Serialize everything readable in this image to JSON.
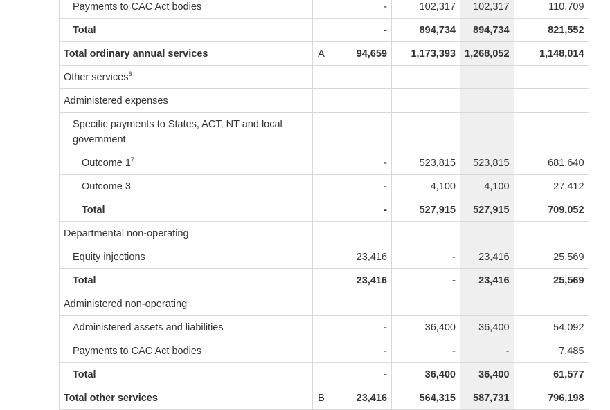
{
  "rows": [
    {
      "label": "Payments to CAC Act bodies",
      "sup": "",
      "indent": 1,
      "bold": false,
      "note": "",
      "c1": "",
      "c2": "-",
      "c3": "102,317",
      "c4": "102,317",
      "c5": "110,709"
    },
    {
      "label": "Total",
      "sup": "",
      "indent": 1,
      "bold": true,
      "note": "",
      "c1": "",
      "c2": "-",
      "c3": "894,734",
      "c4": "894,734",
      "c5": "821,552"
    },
    {
      "label": "Total ordinary annual services",
      "sup": "",
      "indent": 0,
      "bold": true,
      "note": "A",
      "c1": "",
      "c2": "94,659",
      "c3": "1,173,393",
      "c4": "1,268,052",
      "c5": "1,148,014"
    },
    {
      "label": "Other services",
      "sup": "6",
      "indent": 0,
      "bold": false,
      "note": "",
      "c1": "",
      "c2": "",
      "c3": "",
      "c4": "",
      "c5": ""
    },
    {
      "label": "Administered expenses",
      "sup": "",
      "indent": 0,
      "bold": false,
      "note": "",
      "c1": "",
      "c2": "",
      "c3": "",
      "c4": "",
      "c5": ""
    },
    {
      "label": "Specific payments to States, ACT, NT and local government",
      "sup": "",
      "indent": 1,
      "bold": false,
      "tall": true,
      "note": "",
      "c1": "",
      "c2": "",
      "c3": "",
      "c4": "",
      "c5": ""
    },
    {
      "label": "Outcome 1",
      "sup": "7",
      "indent": 2,
      "bold": false,
      "note": "",
      "c1": "",
      "c2": "-",
      "c3": "523,815",
      "c4": "523,815",
      "c5": "681,640"
    },
    {
      "label": "Outcome 3",
      "sup": "",
      "indent": 2,
      "bold": false,
      "note": "",
      "c1": "",
      "c2": "-",
      "c3": "4,100",
      "c4": "4,100",
      "c5": "27,412"
    },
    {
      "label": "Total",
      "sup": "",
      "indent": 2,
      "bold": true,
      "note": "",
      "c1": "",
      "c2": "-",
      "c3": "527,915",
      "c4": "527,915",
      "c5": "709,052"
    },
    {
      "label": "Departmental non-operating",
      "sup": "",
      "indent": 0,
      "bold": false,
      "note": "",
      "c1": "",
      "c2": "",
      "c3": "",
      "c4": "",
      "c5": ""
    },
    {
      "label": "Equity injections",
      "sup": "",
      "indent": 1,
      "bold": false,
      "note": "",
      "c1": "",
      "c2": "23,416",
      "c3": "-",
      "c4": "23,416",
      "c5": "25,569"
    },
    {
      "label": "Total",
      "sup": "",
      "indent": 1,
      "bold": true,
      "note": "",
      "c1": "",
      "c2": "23,416",
      "c3": "-",
      "c4": "23,416",
      "c5": "25,569"
    },
    {
      "label": "Administered non-operating",
      "sup": "",
      "indent": 0,
      "bold": false,
      "note": "",
      "c1": "",
      "c2": "",
      "c3": "",
      "c4": "",
      "c5": ""
    },
    {
      "label": "Administered assets and liabilities",
      "sup": "",
      "indent": 1,
      "bold": false,
      "note": "",
      "c1": "",
      "c2": "-",
      "c3": "36,400",
      "c4": "36,400",
      "c5": "54,092"
    },
    {
      "label": "Payments to CAC Act bodies",
      "sup": "",
      "indent": 1,
      "bold": false,
      "note": "",
      "c1": "",
      "c2": "-",
      "c3": "-",
      "c4": "-",
      "c5": "7,485"
    },
    {
      "label": "Total",
      "sup": "",
      "indent": 1,
      "bold": true,
      "note": "",
      "c1": "",
      "c2": "-",
      "c3": "36,400",
      "c4": "36,400",
      "c5": "61,577"
    },
    {
      "label": "Total other services",
      "sup": "",
      "indent": 0,
      "bold": true,
      "note": "B",
      "c1": "",
      "c2": "23,416",
      "c3": "564,315",
      "c4": "587,731",
      "c5": "796,198"
    }
  ]
}
